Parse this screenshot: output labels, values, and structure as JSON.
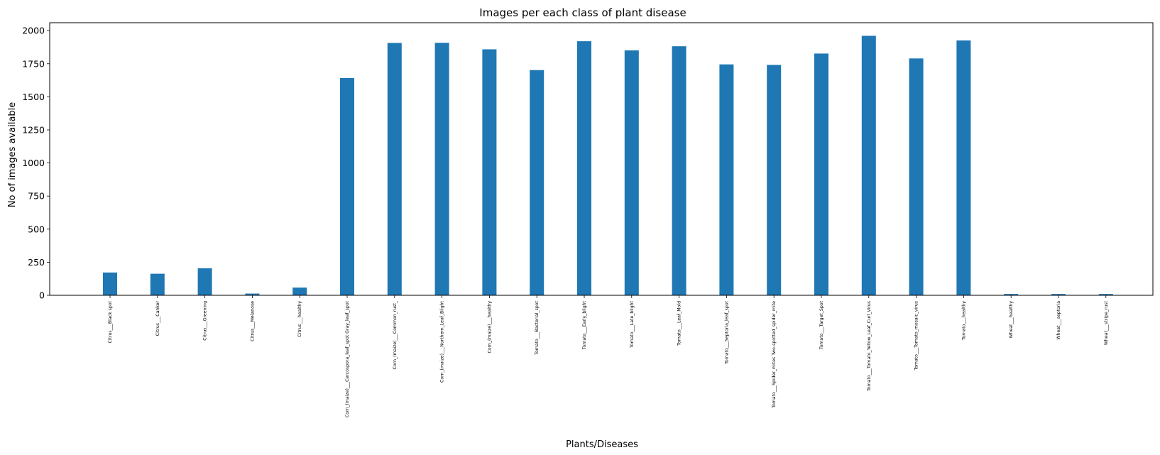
{
  "chart_data": {
    "type": "bar",
    "title": "Images per each class of plant disease",
    "xlabel": "Plants/Diseases",
    "ylabel": "No of images available",
    "ylim": [
      0,
      2060
    ],
    "yticks": [
      0,
      250,
      500,
      750,
      1000,
      1250,
      1500,
      1750,
      2000
    ],
    "grid": false,
    "bar_color": "#1f77b4",
    "categories": [
      "Citrus___Black spot",
      "Citrus___Canker",
      "Citrus___Greening",
      "Citrus___Melanose",
      "Citrus___healthy",
      "Corn_(maize)___Cercospora_leaf_spot Gray_leaf_spot",
      "Corn_(maize)___Common_rust_",
      "Corn_(maize)___Northern_Leaf_Blight",
      "Corn_(maize)___healthy",
      "Tomato___Bacterial_spot",
      "Tomato___Early_blight",
      "Tomato___Late_blight",
      "Tomato___Leaf_Mold",
      "Tomato___Septoria_leaf_spot",
      "Tomato___Spider_mites Two-spotted_spider_mite",
      "Tomato___Target_Spot",
      "Tomato___Tomato_Yellow_Leaf_Curl_Virus",
      "Tomato___Tomato_mosaic_virus",
      "Tomato___healthy",
      "Wheat___healthy",
      "Wheat___septoria",
      "Wheat___stripe_rust"
    ],
    "values": [
      172,
      163,
      204,
      13,
      58,
      1642,
      1907,
      1908,
      1859,
      1702,
      1920,
      1851,
      1882,
      1745,
      1741,
      1827,
      1961,
      1790,
      1926,
      10,
      10,
      10
    ]
  }
}
